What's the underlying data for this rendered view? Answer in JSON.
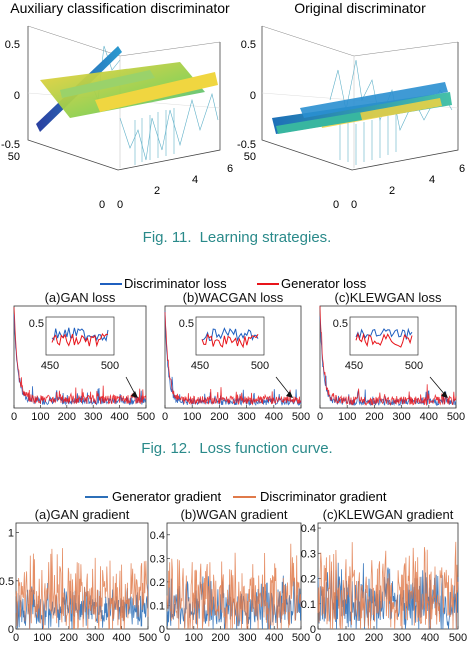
{
  "figure11": {
    "panels": [
      {
        "title": "Auxiliary classification discriminator",
        "z_ticks": [
          "0.5",
          "0",
          "-0.5"
        ],
        "y_ticks": [
          "50",
          "0"
        ],
        "x_ticks": [
          "0",
          "2",
          "4",
          "6"
        ]
      },
      {
        "title": "Original discriminator",
        "z_ticks": [
          "0.5",
          "0",
          "-0.5"
        ],
        "y_ticks": [
          "50",
          "0"
        ],
        "x_ticks": [
          "0",
          "2",
          "4",
          "6"
        ]
      }
    ],
    "caption_label": "Fig. 11.",
    "caption_text": "Learning strategies."
  },
  "figure12": {
    "legend": [
      "Discriminator loss",
      "Generator loss"
    ],
    "caption_label": "Fig. 12.",
    "caption_text": "Loss function curve."
  },
  "figure13": {
    "legend": [
      "Generator gradient",
      "Discriminator gradient"
    ]
  },
  "colors": {
    "caption": "#2a8a8a",
    "discriminator_loss": "#1f5fbf",
    "generator_loss": "#e8141a",
    "generator_gradient": "#2c6fb8",
    "discriminator_gradient": "#e07a4a"
  },
  "chart_data": [
    {
      "type": "line",
      "title": "(a)GAN loss",
      "x_ticks": [
        "0",
        "100",
        "200",
        "300",
        "400",
        "500"
      ],
      "xlim": [
        0,
        500
      ],
      "ylim": [
        0,
        5
      ],
      "inset": {
        "x_ticks": [
          "450",
          "500"
        ],
        "y_ticks": [
          "0.5"
        ],
        "xlim": [
          440,
          500
        ]
      },
      "series": [
        {
          "name": "Discriminator loss",
          "color": "#1f5fbf",
          "start": 4.6,
          "floor": 0.35,
          "decay": 14,
          "noise": 0.18
        },
        {
          "name": "Generator loss",
          "color": "#e8141a",
          "start": 4.9,
          "floor": 0.42,
          "decay": 15,
          "noise": 0.22
        }
      ]
    },
    {
      "type": "line",
      "title": "(b)WACGAN loss",
      "x_ticks": [
        "0",
        "100",
        "200",
        "300",
        "400",
        "500"
      ],
      "xlim": [
        0,
        500
      ],
      "ylim": [
        0,
        5
      ],
      "inset": {
        "x_ticks": [
          "450",
          "500"
        ],
        "y_ticks": [
          "0.5"
        ],
        "xlim": [
          440,
          500
        ]
      },
      "series": [
        {
          "name": "Discriminator loss",
          "color": "#1f5fbf",
          "start": 4.6,
          "floor": 0.3,
          "decay": 12,
          "noise": 0.16
        },
        {
          "name": "Generator loss",
          "color": "#e8141a",
          "start": 4.9,
          "floor": 0.38,
          "decay": 13,
          "noise": 0.2
        }
      ]
    },
    {
      "type": "line",
      "title": "(c)KLEWGAN loss",
      "x_ticks": [
        "0",
        "100",
        "200",
        "300",
        "400",
        "500"
      ],
      "xlim": [
        0,
        500
      ],
      "ylim": [
        0,
        5
      ],
      "inset": {
        "x_ticks": [
          "450",
          "500"
        ],
        "y_ticks": [
          "0.5"
        ],
        "xlim": [
          440,
          500
        ]
      },
      "series": [
        {
          "name": "Discriminator loss",
          "color": "#1f5fbf",
          "start": 4.6,
          "floor": 0.3,
          "decay": 12,
          "noise": 0.17
        },
        {
          "name": "Generator loss",
          "color": "#e8141a",
          "start": 4.9,
          "floor": 0.36,
          "decay": 13,
          "noise": 0.21
        }
      ]
    },
    {
      "type": "line",
      "title": "(a)GAN gradient",
      "x_ticks": [
        "0",
        "100",
        "200",
        "300",
        "400",
        "500"
      ],
      "y_ticks": [
        "0",
        "0.5",
        "1"
      ],
      "xlim": [
        0,
        500
      ],
      "ylim": [
        0,
        1.1
      ],
      "series": [
        {
          "name": "Generator gradient",
          "color": "#2c6fb8",
          "mean": 0.18,
          "amp": 0.35
        },
        {
          "name": "Discriminator gradient",
          "color": "#e07a4a",
          "mean": 0.28,
          "amp": 0.7
        }
      ]
    },
    {
      "type": "line",
      "title": "(b)WGAN gradient",
      "x_ticks": [
        "0",
        "100",
        "200",
        "300",
        "400",
        "500"
      ],
      "y_ticks": [
        "0",
        "0.1",
        "0.2",
        "0.3",
        "0.4"
      ],
      "xlim": [
        0,
        500
      ],
      "ylim": [
        0,
        0.45
      ],
      "series": [
        {
          "name": "Generator gradient",
          "color": "#2c6fb8",
          "mean": 0.08,
          "amp": 0.18
        },
        {
          "name": "Discriminator gradient",
          "color": "#e07a4a",
          "mean": 0.1,
          "amp": 0.3
        }
      ]
    },
    {
      "type": "line",
      "title": "(c)KLEWGAN gradient",
      "x_ticks": [
        "0",
        "100",
        "200",
        "300",
        "400",
        "500"
      ],
      "y_ticks": [
        "0",
        "0.1",
        "0.2",
        "0.3",
        "0.4"
      ],
      "xlim": [
        0,
        500
      ],
      "ylim": [
        0,
        0.42
      ],
      "series": [
        {
          "name": "Generator gradient",
          "color": "#2c6fb8",
          "mean": 0.09,
          "amp": 0.2
        },
        {
          "name": "Discriminator gradient",
          "color": "#e07a4a",
          "mean": 0.11,
          "amp": 0.28
        }
      ]
    }
  ]
}
